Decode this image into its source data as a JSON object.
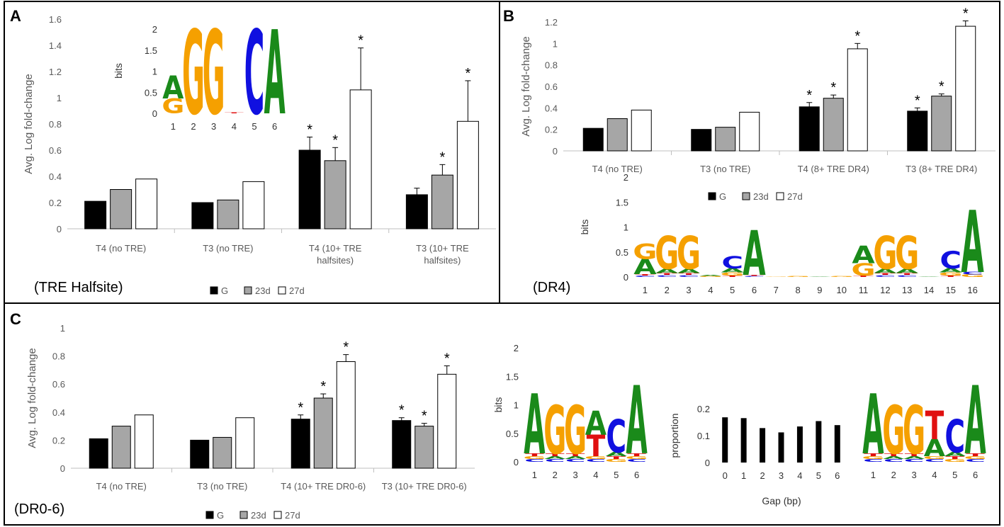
{
  "colors": {
    "G": "#000000",
    "23d": "#a6a6a6",
    "27d": "#ffffff",
    "A": "#1a8a1a",
    "C": "#1010e0",
    "Gletter": "#f5a000",
    "T": "#e01010"
  },
  "panels": {
    "A": {
      "letter": "A",
      "caption": "(TRE Halfsite)"
    },
    "B": {
      "letter": "B",
      "caption": "(DR4)"
    },
    "C": {
      "letter": "C",
      "caption": "(DR0-6)"
    }
  },
  "chart_data": [
    {
      "id": "A",
      "type": "bar",
      "title": "",
      "ylabel": "Avg. Log fold-change",
      "ylim": [
        0,
        1.6
      ],
      "yticks": [
        "0",
        "0.2",
        "0.4",
        "0.6",
        "0.8",
        "1",
        "1.2",
        "1.4",
        "1.6"
      ],
      "categories": [
        [
          "T4 (no TRE)"
        ],
        [
          "T3 (no TRE)"
        ],
        [
          "T4 (10+ TRE",
          "halfsites)"
        ],
        [
          "T3 (10+ TRE",
          "halfsites)"
        ]
      ],
      "series": [
        {
          "name": "G",
          "values": [
            0.21,
            0.2,
            0.6,
            0.26
          ],
          "errors": [
            0,
            0,
            0.1,
            0.05
          ],
          "stars": [
            false,
            false,
            true,
            false
          ]
        },
        {
          "name": "23d",
          "values": [
            0.3,
            0.22,
            0.52,
            0.41
          ],
          "errors": [
            0,
            0,
            0.1,
            0.08
          ],
          "stars": [
            false,
            false,
            true,
            true
          ]
        },
        {
          "name": "27d",
          "values": [
            0.38,
            0.36,
            1.06,
            0.82
          ],
          "errors": [
            0,
            0,
            0.32,
            0.31
          ],
          "stars": [
            false,
            false,
            true,
            true
          ]
        }
      ],
      "legend": [
        "G",
        "23d",
        "27d"
      ]
    },
    {
      "id": "B",
      "type": "bar",
      "title": "",
      "ylabel": "Avg. Log fold-change",
      "ylim": [
        0,
        1.2
      ],
      "yticks": [
        "0",
        "0.2",
        "0.4",
        "0.6",
        "0.8",
        "1",
        "1.2"
      ],
      "categories": [
        [
          "T4 (no TRE)"
        ],
        [
          "T3 (no TRE)"
        ],
        [
          "T4 (8+ TRE DR4)"
        ],
        [
          "T3 (8+ TRE DR4)"
        ]
      ],
      "series": [
        {
          "name": "G",
          "values": [
            0.21,
            0.2,
            0.41,
            0.37
          ],
          "errors": [
            0,
            0,
            0.04,
            0.03
          ],
          "stars": [
            false,
            false,
            true,
            true
          ]
        },
        {
          "name": "23d",
          "values": [
            0.3,
            0.22,
            0.49,
            0.51
          ],
          "errors": [
            0,
            0,
            0.03,
            0.02
          ],
          "stars": [
            false,
            false,
            true,
            true
          ]
        },
        {
          "name": "27d",
          "values": [
            0.38,
            0.36,
            0.95,
            1.16
          ],
          "errors": [
            0,
            0,
            0.05,
            0.05
          ],
          "stars": [
            false,
            false,
            true,
            true
          ]
        }
      ],
      "legend": [
        "G",
        "23d",
        "27d"
      ]
    },
    {
      "id": "C",
      "type": "bar",
      "title": "",
      "ylabel": "Avg. Log fold-change",
      "ylim": [
        0,
        1
      ],
      "yticks": [
        "0",
        "0.2",
        "0.4",
        "0.6",
        "0.8",
        "1"
      ],
      "categories": [
        [
          "T4 (no TRE)"
        ],
        [
          "T3 (no TRE)"
        ],
        [
          "T4 (10+ TRE DR0-6)"
        ],
        [
          "T3 (10+ TRE DR0-6)"
        ]
      ],
      "series": [
        {
          "name": "G",
          "values": [
            0.21,
            0.2,
            0.35,
            0.34
          ],
          "errors": [
            0,
            0,
            0.03,
            0.02
          ],
          "stars": [
            false,
            false,
            true,
            true
          ]
        },
        {
          "name": "23d",
          "values": [
            0.3,
            0.22,
            0.5,
            0.3
          ],
          "errors": [
            0,
            0,
            0.03,
            0.02
          ],
          "stars": [
            false,
            false,
            true,
            true
          ]
        },
        {
          "name": "27d",
          "values": [
            0.38,
            0.36,
            0.76,
            0.67
          ],
          "errors": [
            0,
            0,
            0.05,
            0.06
          ],
          "stars": [
            false,
            false,
            true,
            true
          ]
        }
      ],
      "legend": [
        "G",
        "23d",
        "27d"
      ]
    },
    {
      "id": "C-gap",
      "type": "bar",
      "title": "",
      "xlabel": "Gap (bp)",
      "ylabel": "proportion",
      "ylim": [
        0,
        0.2
      ],
      "yticks": [
        "0",
        "0.1",
        "0.2"
      ],
      "categories": [
        "0",
        "1",
        "2",
        "3",
        "4",
        "5",
        "6"
      ],
      "values": [
        0.168,
        0.165,
        0.128,
        0.112,
        0.134,
        0.154,
        0.139
      ]
    }
  ],
  "logos": [
    {
      "id": "A-halfsite",
      "ylabel": "bits",
      "ymax": 2,
      "yticks": [
        "0",
        "0.5",
        "1",
        "1.5",
        "2"
      ],
      "positions": [
        "1",
        "2",
        "3",
        "4",
        "5",
        "6"
      ],
      "stacks": [
        [
          [
            "G",
            0.35
          ],
          [
            "A",
            0.55
          ]
        ],
        [
          [
            "G",
            2.0
          ]
        ],
        [
          [
            "G",
            2.0
          ]
        ],
        [
          [
            "T",
            0.02
          ]
        ],
        [
          [
            "C",
            2.0
          ]
        ],
        [
          [
            "A",
            2.0
          ]
        ]
      ]
    },
    {
      "id": "B-dr4",
      "ylabel": "bits",
      "ymax": 2,
      "yticks": [
        "0",
        "0.5",
        "1",
        "1.5",
        "2"
      ],
      "positions": [
        "1",
        "2",
        "3",
        "4",
        "5",
        "6",
        "7",
        "8",
        "9",
        "10",
        "11",
        "12",
        "13",
        "14",
        "15",
        "16"
      ],
      "stacks": [
        [
          [
            "C",
            0.03
          ],
          [
            "T",
            0.03
          ],
          [
            "A",
            0.3
          ],
          [
            "G",
            0.3
          ]
        ],
        [
          [
            "C",
            0.04
          ],
          [
            "T",
            0.04
          ],
          [
            "A",
            0.08
          ],
          [
            "G",
            0.66
          ]
        ],
        [
          [
            "C",
            0.04
          ],
          [
            "T",
            0.04
          ],
          [
            "A",
            0.08
          ],
          [
            "G",
            0.66
          ]
        ],
        [
          [
            "G",
            0.02
          ],
          [
            "A",
            0.02
          ]
        ],
        [
          [
            "T",
            0.03
          ],
          [
            "G",
            0.06
          ],
          [
            "A",
            0.08
          ],
          [
            "C",
            0.25
          ]
        ],
        [
          [
            "C",
            0.02
          ],
          [
            "T",
            0.02
          ],
          [
            "A",
            0.9
          ]
        ],
        [
          [
            "G",
            0.01
          ]
        ],
        [
          [
            "G",
            0.02
          ]
        ],
        [
          [
            "A",
            0.01
          ]
        ],
        [
          [
            "G",
            0.02
          ]
        ],
        [
          [
            "T",
            0.03
          ],
          [
            "G",
            0.25
          ],
          [
            "A",
            0.35
          ]
        ],
        [
          [
            "C",
            0.04
          ],
          [
            "T",
            0.04
          ],
          [
            "A",
            0.08
          ],
          [
            "G",
            0.66
          ]
        ],
        [
          [
            "C",
            0.04
          ],
          [
            "T",
            0.04
          ],
          [
            "A",
            0.08
          ],
          [
            "G",
            0.66
          ]
        ],
        [
          [
            "A",
            0.01
          ]
        ],
        [
          [
            "T",
            0.03
          ],
          [
            "G",
            0.06
          ],
          [
            "A",
            0.08
          ],
          [
            "C",
            0.35
          ]
        ],
        [
          [
            "G",
            0.05
          ],
          [
            "C",
            0.05
          ],
          [
            "A",
            1.25
          ]
        ]
      ]
    },
    {
      "id": "C-left",
      "ylabel": "bits",
      "ymax": 2,
      "yticks": [
        "0",
        "0.5",
        "1",
        "1.5",
        "2"
      ],
      "positions": [
        "1",
        "2",
        "3",
        "4",
        "5",
        "6"
      ],
      "stacks": [
        [
          [
            "C",
            0.05
          ],
          [
            "G",
            0.05
          ],
          [
            "T",
            0.05
          ],
          [
            "A",
            1.05
          ]
        ],
        [
          [
            "C",
            0.05
          ],
          [
            "A",
            0.05
          ],
          [
            "T",
            0.05
          ],
          [
            "G",
            0.85
          ]
        ],
        [
          [
            "C",
            0.05
          ],
          [
            "A",
            0.05
          ],
          [
            "T",
            0.05
          ],
          [
            "G",
            0.85
          ]
        ],
        [
          [
            "C",
            0.05
          ],
          [
            "G",
            0.05
          ],
          [
            "T",
            0.38
          ],
          [
            "A",
            0.42
          ]
        ],
        [
          [
            "G",
            0.05
          ],
          [
            "T",
            0.05
          ],
          [
            "A",
            0.07
          ],
          [
            "C",
            0.58
          ]
        ],
        [
          [
            "C",
            0.05
          ],
          [
            "G",
            0.05
          ],
          [
            "T",
            0.05
          ],
          [
            "A",
            1.2
          ]
        ]
      ]
    },
    {
      "id": "C-right",
      "ylabel": "",
      "ymax": 2,
      "yticks": [],
      "positions": [
        "1",
        "2",
        "3",
        "4",
        "5",
        "6"
      ],
      "stacks": [
        [
          [
            "C",
            0.05
          ],
          [
            "G",
            0.05
          ],
          [
            "T",
            0.05
          ],
          [
            "A",
            1.05
          ]
        ],
        [
          [
            "C",
            0.05
          ],
          [
            "A",
            0.05
          ],
          [
            "T",
            0.05
          ],
          [
            "G",
            0.85
          ]
        ],
        [
          [
            "C",
            0.05
          ],
          [
            "A",
            0.05
          ],
          [
            "T",
            0.05
          ],
          [
            "G",
            0.85
          ]
        ],
        [
          [
            "C",
            0.05
          ],
          [
            "G",
            0.05
          ],
          [
            "A",
            0.3
          ],
          [
            "T",
            0.5
          ]
        ],
        [
          [
            "G",
            0.05
          ],
          [
            "T",
            0.05
          ],
          [
            "A",
            0.07
          ],
          [
            "C",
            0.58
          ]
        ],
        [
          [
            "C",
            0.05
          ],
          [
            "G",
            0.05
          ],
          [
            "T",
            0.05
          ],
          [
            "A",
            1.2
          ]
        ]
      ]
    }
  ]
}
